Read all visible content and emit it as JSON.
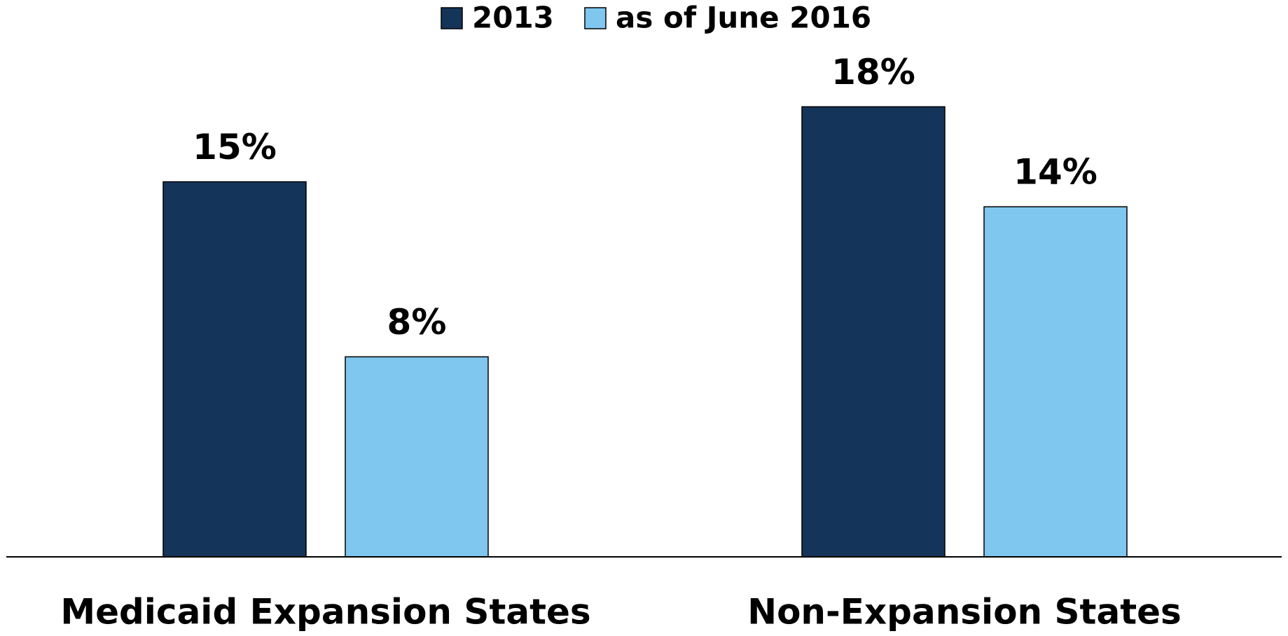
{
  "chart_data": {
    "type": "bar",
    "categories": [
      "Medicaid Expansion States",
      "Non-Expansion States"
    ],
    "series": [
      {
        "name": "2013",
        "color": "#15345a",
        "values": [
          15,
          18
        ],
        "value_labels": [
          "15%",
          "18%"
        ]
      },
      {
        "name": "as of June 2016",
        "color": "#7fc7ee",
        "values": [
          8,
          14
        ],
        "value_labels": [
          "8%",
          "14%"
        ]
      }
    ],
    "legend": "top"
  }
}
